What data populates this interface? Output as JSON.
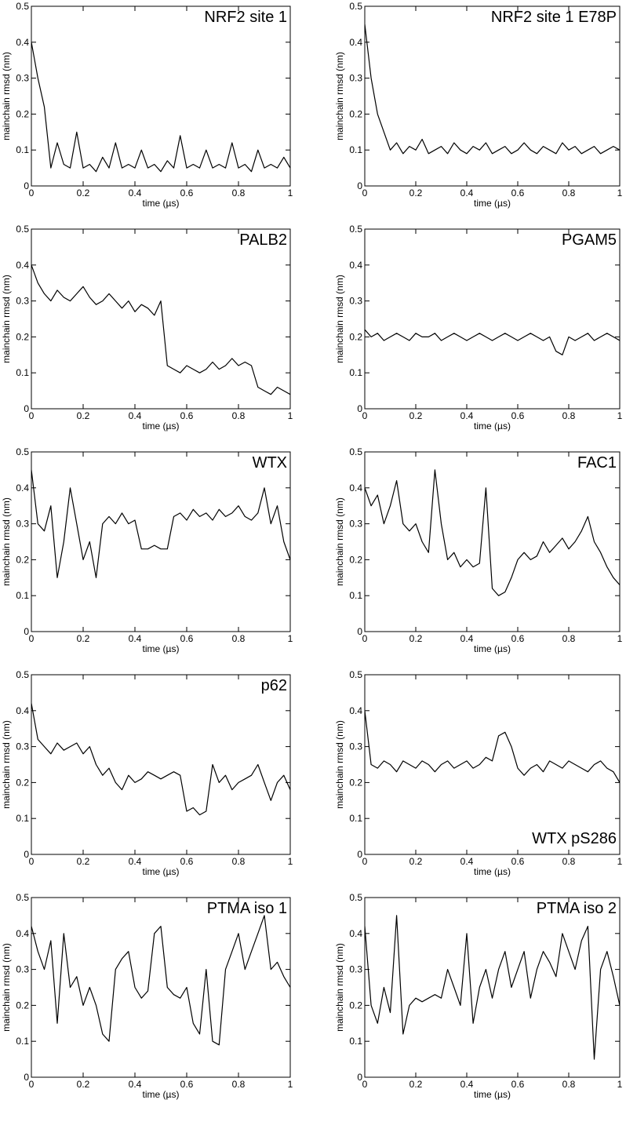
{
  "chart_data": [
    {
      "type": "line",
      "title": "NRF2 site 1",
      "title_corner": "top-right",
      "x_label": "time (µs)",
      "y_label": "mainchain rmsd (nm)",
      "xlim": [
        0,
        1
      ],
      "ylim": [
        0,
        0.5
      ],
      "xticks": [
        0,
        0.2,
        0.4,
        0.6,
        0.8,
        1
      ],
      "yticks": [
        0,
        0.1,
        0.2,
        0.3,
        0.4,
        0.5
      ],
      "color": "#000000",
      "x": [
        0,
        0.025,
        0.05,
        0.075,
        0.1,
        0.125,
        0.15,
        0.175,
        0.2,
        0.225,
        0.25,
        0.275,
        0.3,
        0.325,
        0.35,
        0.375,
        0.4,
        0.425,
        0.45,
        0.475,
        0.5,
        0.525,
        0.55,
        0.575,
        0.6,
        0.625,
        0.65,
        0.675,
        0.7,
        0.725,
        0.75,
        0.775,
        0.8,
        0.825,
        0.85,
        0.875,
        0.9,
        0.925,
        0.95,
        0.975,
        1
      ],
      "values": [
        0.4,
        0.3,
        0.22,
        0.05,
        0.12,
        0.06,
        0.05,
        0.15,
        0.05,
        0.06,
        0.04,
        0.08,
        0.05,
        0.12,
        0.05,
        0.06,
        0.05,
        0.1,
        0.05,
        0.06,
        0.04,
        0.07,
        0.05,
        0.14,
        0.05,
        0.06,
        0.05,
        0.1,
        0.05,
        0.06,
        0.05,
        0.12,
        0.05,
        0.06,
        0.04,
        0.1,
        0.05,
        0.06,
        0.05,
        0.08,
        0.05
      ]
    },
    {
      "type": "line",
      "title": "NRF2 site 1 E78P",
      "title_corner": "top-right",
      "x_label": "time (µs)",
      "y_label": "mainchain rmsd (nm)",
      "xlim": [
        0,
        1
      ],
      "ylim": [
        0,
        0.5
      ],
      "xticks": [
        0,
        0.2,
        0.4,
        0.6,
        0.8,
        1
      ],
      "yticks": [
        0,
        0.1,
        0.2,
        0.3,
        0.4,
        0.5
      ],
      "color": "#000000",
      "x": [
        0,
        0.025,
        0.05,
        0.075,
        0.1,
        0.125,
        0.15,
        0.175,
        0.2,
        0.225,
        0.25,
        0.275,
        0.3,
        0.325,
        0.35,
        0.375,
        0.4,
        0.425,
        0.45,
        0.475,
        0.5,
        0.525,
        0.55,
        0.575,
        0.6,
        0.625,
        0.65,
        0.675,
        0.7,
        0.725,
        0.75,
        0.775,
        0.8,
        0.825,
        0.85,
        0.875,
        0.9,
        0.925,
        0.95,
        0.975,
        1
      ],
      "values": [
        0.45,
        0.3,
        0.2,
        0.15,
        0.1,
        0.12,
        0.09,
        0.11,
        0.1,
        0.13,
        0.09,
        0.1,
        0.11,
        0.09,
        0.12,
        0.1,
        0.09,
        0.11,
        0.1,
        0.12,
        0.09,
        0.1,
        0.11,
        0.09,
        0.1,
        0.12,
        0.1,
        0.09,
        0.11,
        0.1,
        0.09,
        0.12,
        0.1,
        0.11,
        0.09,
        0.1,
        0.11,
        0.09,
        0.1,
        0.11,
        0.1
      ]
    },
    {
      "type": "line",
      "title": "PALB2",
      "title_corner": "top-right",
      "x_label": "time (µs)",
      "y_label": "mainchain rmsd (nm)",
      "xlim": [
        0,
        1
      ],
      "ylim": [
        0,
        0.5
      ],
      "xticks": [
        0,
        0.2,
        0.4,
        0.6,
        0.8,
        1
      ],
      "yticks": [
        0,
        0.1,
        0.2,
        0.3,
        0.4,
        0.5
      ],
      "color": "#000000",
      "x": [
        0,
        0.025,
        0.05,
        0.075,
        0.1,
        0.125,
        0.15,
        0.175,
        0.2,
        0.225,
        0.25,
        0.275,
        0.3,
        0.325,
        0.35,
        0.375,
        0.4,
        0.425,
        0.45,
        0.475,
        0.5,
        0.525,
        0.55,
        0.575,
        0.6,
        0.625,
        0.65,
        0.675,
        0.7,
        0.725,
        0.75,
        0.775,
        0.8,
        0.825,
        0.85,
        0.875,
        0.9,
        0.925,
        0.95,
        0.975,
        1
      ],
      "values": [
        0.4,
        0.35,
        0.32,
        0.3,
        0.33,
        0.31,
        0.3,
        0.32,
        0.34,
        0.31,
        0.29,
        0.3,
        0.32,
        0.3,
        0.28,
        0.3,
        0.27,
        0.29,
        0.28,
        0.26,
        0.3,
        0.12,
        0.11,
        0.1,
        0.12,
        0.11,
        0.1,
        0.11,
        0.13,
        0.11,
        0.12,
        0.14,
        0.12,
        0.13,
        0.12,
        0.06,
        0.05,
        0.04,
        0.06,
        0.05,
        0.04
      ]
    },
    {
      "type": "line",
      "title": "PGAM5",
      "title_corner": "top-right",
      "x_label": "time (µs)",
      "y_label": "mainchain rmsd (nm)",
      "xlim": [
        0,
        1
      ],
      "ylim": [
        0,
        0.5
      ],
      "xticks": [
        0,
        0.2,
        0.4,
        0.6,
        0.8,
        1
      ],
      "yticks": [
        0,
        0.1,
        0.2,
        0.3,
        0.4,
        0.5
      ],
      "color": "#000000",
      "x": [
        0,
        0.025,
        0.05,
        0.075,
        0.1,
        0.125,
        0.15,
        0.175,
        0.2,
        0.225,
        0.25,
        0.275,
        0.3,
        0.325,
        0.35,
        0.375,
        0.4,
        0.425,
        0.45,
        0.475,
        0.5,
        0.525,
        0.55,
        0.575,
        0.6,
        0.625,
        0.65,
        0.675,
        0.7,
        0.725,
        0.75,
        0.775,
        0.8,
        0.825,
        0.85,
        0.875,
        0.9,
        0.925,
        0.95,
        0.975,
        1
      ],
      "values": [
        0.22,
        0.2,
        0.21,
        0.19,
        0.2,
        0.21,
        0.2,
        0.19,
        0.21,
        0.2,
        0.2,
        0.21,
        0.19,
        0.2,
        0.21,
        0.2,
        0.19,
        0.2,
        0.21,
        0.2,
        0.19,
        0.2,
        0.21,
        0.2,
        0.19,
        0.2,
        0.21,
        0.2,
        0.19,
        0.2,
        0.16,
        0.15,
        0.2,
        0.19,
        0.2,
        0.21,
        0.19,
        0.2,
        0.21,
        0.2,
        0.19
      ]
    },
    {
      "type": "line",
      "title": "WTX",
      "title_corner": "top-right",
      "x_label": "time (µs)",
      "y_label": "mainchain rmsd (nm)",
      "xlim": [
        0,
        1
      ],
      "ylim": [
        0,
        0.5
      ],
      "xticks": [
        0,
        0.2,
        0.4,
        0.6,
        0.8,
        1
      ],
      "yticks": [
        0,
        0.1,
        0.2,
        0.3,
        0.4,
        0.5
      ],
      "color": "#000000",
      "x": [
        0,
        0.025,
        0.05,
        0.075,
        0.1,
        0.125,
        0.15,
        0.175,
        0.2,
        0.225,
        0.25,
        0.275,
        0.3,
        0.325,
        0.35,
        0.375,
        0.4,
        0.425,
        0.45,
        0.475,
        0.5,
        0.525,
        0.55,
        0.575,
        0.6,
        0.625,
        0.65,
        0.675,
        0.7,
        0.725,
        0.75,
        0.775,
        0.8,
        0.825,
        0.85,
        0.875,
        0.9,
        0.925,
        0.95,
        0.975,
        1
      ],
      "values": [
        0.45,
        0.3,
        0.28,
        0.35,
        0.15,
        0.25,
        0.4,
        0.3,
        0.2,
        0.25,
        0.15,
        0.3,
        0.32,
        0.3,
        0.33,
        0.3,
        0.31,
        0.23,
        0.23,
        0.24,
        0.23,
        0.23,
        0.32,
        0.33,
        0.31,
        0.34,
        0.32,
        0.33,
        0.31,
        0.34,
        0.32,
        0.33,
        0.35,
        0.32,
        0.31,
        0.33,
        0.4,
        0.3,
        0.35,
        0.25,
        0.2
      ]
    },
    {
      "type": "line",
      "title": "FAC1",
      "title_corner": "top-right",
      "x_label": "time (µs)",
      "y_label": "mainchain rmsd (nm)",
      "xlim": [
        0,
        1
      ],
      "ylim": [
        0,
        0.5
      ],
      "xticks": [
        0,
        0.2,
        0.4,
        0.6,
        0.8,
        1
      ],
      "yticks": [
        0,
        0.1,
        0.2,
        0.3,
        0.4,
        0.5
      ],
      "color": "#000000",
      "x": [
        0,
        0.025,
        0.05,
        0.075,
        0.1,
        0.125,
        0.15,
        0.175,
        0.2,
        0.225,
        0.25,
        0.275,
        0.3,
        0.325,
        0.35,
        0.375,
        0.4,
        0.425,
        0.45,
        0.475,
        0.5,
        0.525,
        0.55,
        0.575,
        0.6,
        0.625,
        0.65,
        0.675,
        0.7,
        0.725,
        0.75,
        0.775,
        0.8,
        0.825,
        0.85,
        0.875,
        0.9,
        0.925,
        0.95,
        0.975,
        1
      ],
      "values": [
        0.4,
        0.35,
        0.38,
        0.3,
        0.35,
        0.42,
        0.3,
        0.28,
        0.3,
        0.25,
        0.22,
        0.45,
        0.3,
        0.2,
        0.22,
        0.18,
        0.2,
        0.18,
        0.19,
        0.4,
        0.12,
        0.1,
        0.11,
        0.15,
        0.2,
        0.22,
        0.2,
        0.21,
        0.25,
        0.22,
        0.24,
        0.26,
        0.23,
        0.25,
        0.28,
        0.32,
        0.25,
        0.22,
        0.18,
        0.15,
        0.13
      ]
    },
    {
      "type": "line",
      "title": "p62",
      "title_corner": "top-right",
      "x_label": "time (µs)",
      "y_label": "mainchain rmsd (nm)",
      "xlim": [
        0,
        1
      ],
      "ylim": [
        0,
        0.5
      ],
      "xticks": [
        0,
        0.2,
        0.4,
        0.6,
        0.8,
        1
      ],
      "yticks": [
        0,
        0.1,
        0.2,
        0.3,
        0.4,
        0.5
      ],
      "color": "#000000",
      "x": [
        0,
        0.025,
        0.05,
        0.075,
        0.1,
        0.125,
        0.15,
        0.175,
        0.2,
        0.225,
        0.25,
        0.275,
        0.3,
        0.325,
        0.35,
        0.375,
        0.4,
        0.425,
        0.45,
        0.475,
        0.5,
        0.525,
        0.55,
        0.575,
        0.6,
        0.625,
        0.65,
        0.675,
        0.7,
        0.725,
        0.75,
        0.775,
        0.8,
        0.825,
        0.85,
        0.875,
        0.9,
        0.925,
        0.95,
        0.975,
        1
      ],
      "values": [
        0.42,
        0.32,
        0.3,
        0.28,
        0.31,
        0.29,
        0.3,
        0.31,
        0.28,
        0.3,
        0.25,
        0.22,
        0.24,
        0.2,
        0.18,
        0.22,
        0.2,
        0.21,
        0.23,
        0.22,
        0.21,
        0.22,
        0.23,
        0.22,
        0.12,
        0.13,
        0.11,
        0.12,
        0.25,
        0.2,
        0.22,
        0.18,
        0.2,
        0.21,
        0.22,
        0.25,
        0.2,
        0.15,
        0.2,
        0.22,
        0.18
      ]
    },
    {
      "type": "line",
      "title": "WTX pS286",
      "title_corner": "bottom-right",
      "x_label": "time (µs)",
      "y_label": "mainchain rmsd (nm)",
      "xlim": [
        0,
        1
      ],
      "ylim": [
        0,
        0.5
      ],
      "xticks": [
        0,
        0.2,
        0.4,
        0.6,
        0.8,
        1
      ],
      "yticks": [
        0,
        0.1,
        0.2,
        0.3,
        0.4,
        0.5
      ],
      "color": "#000000",
      "x": [
        0,
        0.025,
        0.05,
        0.075,
        0.1,
        0.125,
        0.15,
        0.175,
        0.2,
        0.225,
        0.25,
        0.275,
        0.3,
        0.325,
        0.35,
        0.375,
        0.4,
        0.425,
        0.45,
        0.475,
        0.5,
        0.525,
        0.55,
        0.575,
        0.6,
        0.625,
        0.65,
        0.675,
        0.7,
        0.725,
        0.75,
        0.775,
        0.8,
        0.825,
        0.85,
        0.875,
        0.9,
        0.925,
        0.95,
        0.975,
        1
      ],
      "values": [
        0.4,
        0.25,
        0.24,
        0.26,
        0.25,
        0.23,
        0.26,
        0.25,
        0.24,
        0.26,
        0.25,
        0.23,
        0.25,
        0.26,
        0.24,
        0.25,
        0.26,
        0.24,
        0.25,
        0.27,
        0.26,
        0.33,
        0.34,
        0.3,
        0.24,
        0.22,
        0.24,
        0.25,
        0.23,
        0.26,
        0.25,
        0.24,
        0.26,
        0.25,
        0.24,
        0.23,
        0.25,
        0.26,
        0.24,
        0.23,
        0.2
      ]
    },
    {
      "type": "line",
      "title": "PTMA iso 1",
      "title_corner": "top-right",
      "x_label": "time (µs)",
      "y_label": "mainchain rmsd (nm)",
      "xlim": [
        0,
        1
      ],
      "ylim": [
        0,
        0.5
      ],
      "xticks": [
        0,
        0.2,
        0.4,
        0.6,
        0.8,
        1
      ],
      "yticks": [
        0,
        0.1,
        0.2,
        0.3,
        0.4,
        0.5
      ],
      "color": "#000000",
      "x": [
        0,
        0.025,
        0.05,
        0.075,
        0.1,
        0.125,
        0.15,
        0.175,
        0.2,
        0.225,
        0.25,
        0.275,
        0.3,
        0.325,
        0.35,
        0.375,
        0.4,
        0.425,
        0.45,
        0.475,
        0.5,
        0.525,
        0.55,
        0.575,
        0.6,
        0.625,
        0.65,
        0.675,
        0.7,
        0.725,
        0.75,
        0.775,
        0.8,
        0.825,
        0.85,
        0.875,
        0.9,
        0.925,
        0.95,
        0.975,
        1
      ],
      "values": [
        0.42,
        0.35,
        0.3,
        0.38,
        0.15,
        0.4,
        0.25,
        0.28,
        0.2,
        0.25,
        0.2,
        0.12,
        0.1,
        0.3,
        0.33,
        0.35,
        0.25,
        0.22,
        0.24,
        0.4,
        0.42,
        0.25,
        0.23,
        0.22,
        0.25,
        0.15,
        0.12,
        0.3,
        0.1,
        0.09,
        0.3,
        0.35,
        0.4,
        0.3,
        0.35,
        0.4,
        0.45,
        0.3,
        0.32,
        0.28,
        0.25
      ]
    },
    {
      "type": "line",
      "title": "PTMA iso 2",
      "title_corner": "top-right",
      "x_label": "time (µs)",
      "y_label": "mainchain rmsd (nm)",
      "xlim": [
        0,
        1
      ],
      "ylim": [
        0,
        0.5
      ],
      "xticks": [
        0,
        0.2,
        0.4,
        0.6,
        0.8,
        1
      ],
      "yticks": [
        0,
        0.1,
        0.2,
        0.3,
        0.4,
        0.5
      ],
      "color": "#000000",
      "x": [
        0,
        0.025,
        0.05,
        0.075,
        0.1,
        0.125,
        0.15,
        0.175,
        0.2,
        0.225,
        0.25,
        0.275,
        0.3,
        0.325,
        0.35,
        0.375,
        0.4,
        0.425,
        0.45,
        0.475,
        0.5,
        0.525,
        0.55,
        0.575,
        0.6,
        0.625,
        0.65,
        0.675,
        0.7,
        0.725,
        0.75,
        0.775,
        0.8,
        0.825,
        0.85,
        0.875,
        0.9,
        0.925,
        0.95,
        0.975,
        1
      ],
      "values": [
        0.42,
        0.2,
        0.15,
        0.25,
        0.18,
        0.45,
        0.12,
        0.2,
        0.22,
        0.21,
        0.22,
        0.23,
        0.22,
        0.3,
        0.25,
        0.2,
        0.4,
        0.15,
        0.25,
        0.3,
        0.22,
        0.3,
        0.35,
        0.25,
        0.3,
        0.35,
        0.22,
        0.3,
        0.35,
        0.32,
        0.28,
        0.4,
        0.35,
        0.3,
        0.38,
        0.42,
        0.05,
        0.3,
        0.35,
        0.28,
        0.2
      ]
    }
  ]
}
